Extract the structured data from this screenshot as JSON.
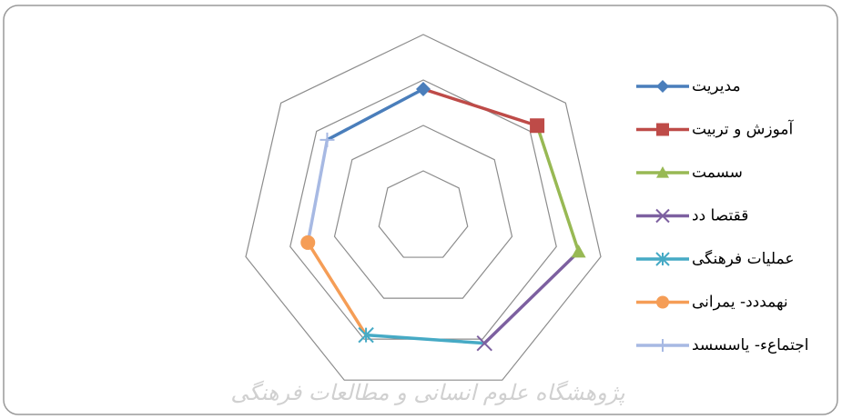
{
  "chart_data": {
    "type": "radar",
    "series": [
      {
        "name": "مدیریت",
        "color": "#4a7ebb",
        "marker": "diamond",
        "values": [
          2.8
        ]
      },
      {
        "name": "آموزش و تربیت",
        "color": "#be4b48",
        "marker": "square",
        "values": [
          3.2
        ]
      },
      {
        "name": "سسمت",
        "color": "#98b954",
        "marker": "triangle",
        "values": [
          3.5
        ]
      },
      {
        "name": "ققتصا دد",
        "color": "#7d60a0",
        "marker": "x",
        "values": [
          3.1
        ]
      },
      {
        "name": "عملیات فرهنگی",
        "color": "#46aac5",
        "marker": "star",
        "values": [
          2.9
        ]
      },
      {
        "name": "نهمددد- یمرانی",
        "color": "#f59d56",
        "marker": "circle",
        "values": [
          2.6
        ]
      },
      {
        "name": "اجتماعء- یاسسسد",
        "color": "#a7b9e3",
        "marker": "plus",
        "values": [
          2.7
        ]
      }
    ],
    "rlim": [
      0,
      4
    ],
    "rticks": [
      1,
      2,
      3,
      4
    ],
    "grid": true,
    "legend": "right",
    "watermark": "پژوهشگاه علوم انسانی و مطالعات فرهنگی"
  }
}
